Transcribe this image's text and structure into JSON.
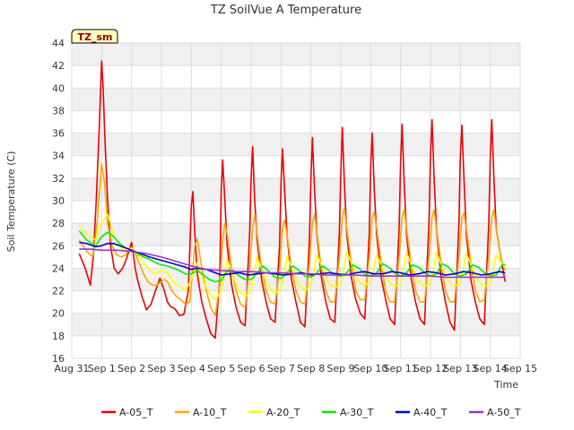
{
  "chart_data": {
    "type": "line",
    "title": "TZ SoilVue A Temperature",
    "xlabel": "Time",
    "ylabel": "Soil Temperature (C)",
    "ylim": [
      16,
      44
    ],
    "yticks": [
      16,
      18,
      20,
      22,
      24,
      26,
      28,
      30,
      32,
      34,
      36,
      38,
      40,
      42,
      44
    ],
    "xlim": [
      0,
      15
    ],
    "xtick_labels": [
      "Aug 31",
      "Sep 1",
      "Sep 2",
      "Sep 3",
      "Sep 4",
      "Sep 5",
      "Sep 6",
      "Sep 7",
      "Sep 8",
      "Sep 9",
      "Sep 10",
      "Sep 11",
      "Sep 12",
      "Sep 13",
      "Sep 14",
      "Sep 15"
    ],
    "badge": "TZ_sm",
    "legend_position": "bottom",
    "colors": {
      "A-05_T": "#ee0000",
      "A-10_T": "#ffa500",
      "A-20_T": "#ffff00",
      "A-30_T": "#00ee00",
      "A-40_T": "#0000cc",
      "A-50_T": "#9933cc"
    },
    "series": [
      {
        "name": "A-05_T",
        "x": [
          0.25,
          0.45,
          0.62,
          0.72,
          0.82,
          0.92,
          1.0,
          1.05,
          1.1,
          1.2,
          1.3,
          1.42,
          1.55,
          1.7,
          1.85,
          2.0,
          2.05,
          2.12,
          2.2,
          2.35,
          2.5,
          2.65,
          2.8,
          2.95,
          3.1,
          3.2,
          3.3,
          3.45,
          3.6,
          3.75,
          3.9,
          4.0,
          4.05,
          4.12,
          4.2,
          4.35,
          4.5,
          4.65,
          4.8,
          4.95,
          5.0,
          5.05,
          5.12,
          5.2,
          5.35,
          5.5,
          5.65,
          5.8,
          5.95,
          6.0,
          6.05,
          6.12,
          6.2,
          6.35,
          6.5,
          6.65,
          6.8,
          6.95,
          7.0,
          7.05,
          7.12,
          7.2,
          7.35,
          7.5,
          7.65,
          7.8,
          7.95,
          8.0,
          8.05,
          8.12,
          8.2,
          8.35,
          8.5,
          8.65,
          8.8,
          8.95,
          9.0,
          9.05,
          9.12,
          9.2,
          9.35,
          9.5,
          9.65,
          9.8,
          9.95,
          10.0,
          10.05,
          10.12,
          10.2,
          10.35,
          10.5,
          10.65,
          10.8,
          10.95,
          11.0,
          11.05,
          11.12,
          11.2,
          11.35,
          11.5,
          11.65,
          11.8,
          11.95,
          12.0,
          12.05,
          12.12,
          12.2,
          12.35,
          12.5,
          12.65,
          12.8,
          12.95,
          13.0,
          13.05,
          13.12,
          13.2,
          13.35,
          13.5,
          13.65,
          13.8,
          13.95,
          14.0,
          14.05,
          14.12,
          14.2,
          14.35,
          14.5
        ],
        "y": [
          25.3,
          24.0,
          22.5,
          25.0,
          30.0,
          36.5,
          42.4,
          40.0,
          36.0,
          30.0,
          26.0,
          24.0,
          23.5,
          24.0,
          25.0,
          26.3,
          25.5,
          24.0,
          23.0,
          21.5,
          20.3,
          20.8,
          22.0,
          23.1,
          22.0,
          21.0,
          20.6,
          20.4,
          19.8,
          19.9,
          22.0,
          29.5,
          30.8,
          27.0,
          23.5,
          21.0,
          19.5,
          18.2,
          17.8,
          23.0,
          31.0,
          33.6,
          30.0,
          26.0,
          22.5,
          20.5,
          19.2,
          18.9,
          27.0,
          32.0,
          34.8,
          30.0,
          26.5,
          23.0,
          21.0,
          19.5,
          19.2,
          26.0,
          31.5,
          34.6,
          31.0,
          27.0,
          23.0,
          21.0,
          19.2,
          18.8,
          26.5,
          32.0,
          35.6,
          31.0,
          27.0,
          23.2,
          21.0,
          19.5,
          19.2,
          27.0,
          32.5,
          36.5,
          31.5,
          27.0,
          23.2,
          21.2,
          20.0,
          19.5,
          27.0,
          33.0,
          36.0,
          31.0,
          27.0,
          23.2,
          21.2,
          19.5,
          19.0,
          27.5,
          33.5,
          36.8,
          31.5,
          27.0,
          23.2,
          21.0,
          19.5,
          19.0,
          28.0,
          34.0,
          37.2,
          32.0,
          27.5,
          23.2,
          21.0,
          19.2,
          18.5,
          28.0,
          34.0,
          36.7,
          32.0,
          27.0,
          23.0,
          21.0,
          19.5,
          19.0,
          28.0,
          34.0,
          37.2,
          32.0,
          27.5,
          25.0,
          22.8
        ]
      },
      {
        "name": "A-10_T",
        "x": [
          0.25,
          0.5,
          0.7,
          0.85,
          1.0,
          1.1,
          1.2,
          1.35,
          1.5,
          1.65,
          1.8,
          1.95,
          2.1,
          2.25,
          2.4,
          2.55,
          2.7,
          2.85,
          3.0,
          3.1,
          3.2,
          3.35,
          3.5,
          3.65,
          3.8,
          3.95,
          4.05,
          4.12,
          4.2,
          4.35,
          4.5,
          4.65,
          4.8,
          4.95,
          5.05,
          5.12,
          5.2,
          5.35,
          5.5,
          5.65,
          5.8,
          5.95,
          6.05,
          6.12,
          6.2,
          6.35,
          6.5,
          6.65,
          6.8,
          6.95,
          7.05,
          7.12,
          7.2,
          7.35,
          7.5,
          7.65,
          7.8,
          7.95,
          8.05,
          8.12,
          8.2,
          8.35,
          8.5,
          8.65,
          8.8,
          8.95,
          9.05,
          9.12,
          9.2,
          9.35,
          9.5,
          9.65,
          9.8,
          9.95,
          10.05,
          10.12,
          10.2,
          10.35,
          10.5,
          10.65,
          10.8,
          10.95,
          11.05,
          11.12,
          11.2,
          11.35,
          11.5,
          11.65,
          11.8,
          11.95,
          12.05,
          12.12,
          12.2,
          12.35,
          12.5,
          12.65,
          12.8,
          12.95,
          13.05,
          13.12,
          13.2,
          13.35,
          13.5,
          13.65,
          13.8,
          13.95,
          14.05,
          14.12,
          14.2,
          14.35,
          14.5
        ],
        "y": [
          26.5,
          25.5,
          25.0,
          28.0,
          33.3,
          31.5,
          28.0,
          26.0,
          25.2,
          25.0,
          25.2,
          25.8,
          25.5,
          24.5,
          23.5,
          22.8,
          22.5,
          22.5,
          22.8,
          23.0,
          22.8,
          22.0,
          21.5,
          21.2,
          20.8,
          21.0,
          24.0,
          26.0,
          26.6,
          24.0,
          22.0,
          20.5,
          19.8,
          22.5,
          26.5,
          28.0,
          27.0,
          24.0,
          22.0,
          20.8,
          20.5,
          24.0,
          27.5,
          28.8,
          27.0,
          24.0,
          22.0,
          21.0,
          20.8,
          24.0,
          27.5,
          28.3,
          27.0,
          24.0,
          22.0,
          21.0,
          20.8,
          24.5,
          28.0,
          28.8,
          27.2,
          24.0,
          22.0,
          21.0,
          21.0,
          25.0,
          28.5,
          29.3,
          27.5,
          24.5,
          22.0,
          21.2,
          21.2,
          25.0,
          28.5,
          29.0,
          27.5,
          24.5,
          22.0,
          21.0,
          21.0,
          25.0,
          28.5,
          29.2,
          27.5,
          24.5,
          22.0,
          21.0,
          21.0,
          25.0,
          28.5,
          29.2,
          27.5,
          24.5,
          22.0,
          21.0,
          21.0,
          25.0,
          28.5,
          28.9,
          27.5,
          24.5,
          22.0,
          21.0,
          21.2,
          25.0,
          28.5,
          29.2,
          27.5,
          25.0,
          23.8
        ]
      },
      {
        "name": "A-20_T",
        "x": [
          0.25,
          0.5,
          0.8,
          1.0,
          1.2,
          1.4,
          1.6,
          1.8,
          2.0,
          2.2,
          2.4,
          2.6,
          2.8,
          3.0,
          3.2,
          3.4,
          3.6,
          3.8,
          4.0,
          4.2,
          4.4,
          4.6,
          4.8,
          5.0,
          5.2,
          5.4,
          5.6,
          5.8,
          6.0,
          6.2,
          6.4,
          6.6,
          6.8,
          7.0,
          7.2,
          7.4,
          7.6,
          7.8,
          8.0,
          8.2,
          8.4,
          8.6,
          8.8,
          9.0,
          9.2,
          9.4,
          9.6,
          9.8,
          10.0,
          10.2,
          10.4,
          10.6,
          10.8,
          11.0,
          11.2,
          11.4,
          11.6,
          11.8,
          12.0,
          12.2,
          12.4,
          12.6,
          12.8,
          13.0,
          13.2,
          13.4,
          13.6,
          13.8,
          14.0,
          14.2,
          14.4,
          14.5
        ],
        "y": [
          27.8,
          27.0,
          26.5,
          28.0,
          28.8,
          27.0,
          26.0,
          25.5,
          25.8,
          25.2,
          24.5,
          23.8,
          23.5,
          23.8,
          23.6,
          22.8,
          22.4,
          22.0,
          23.0,
          24.5,
          22.8,
          21.8,
          21.2,
          22.0,
          24.8,
          23.2,
          22.0,
          21.5,
          22.0,
          25.0,
          23.5,
          22.2,
          21.8,
          22.2,
          25.0,
          23.8,
          22.5,
          22.0,
          22.5,
          25.2,
          24.0,
          22.6,
          22.3,
          22.6,
          25.4,
          24.2,
          22.8,
          22.5,
          22.8,
          25.2,
          24.0,
          22.8,
          22.4,
          22.6,
          25.4,
          24.0,
          22.8,
          22.4,
          22.6,
          25.4,
          24.0,
          22.8,
          22.4,
          22.6,
          25.3,
          24.0,
          22.8,
          22.4,
          22.6,
          25.2,
          24.4,
          24.0
        ]
      },
      {
        "name": "A-30_T",
        "x": [
          0.25,
          0.5,
          0.8,
          1.0,
          1.2,
          1.4,
          1.6,
          1.8,
          2.0,
          2.2,
          2.4,
          2.6,
          2.8,
          3.0,
          3.2,
          3.4,
          3.6,
          3.8,
          4.0,
          4.2,
          4.4,
          4.6,
          4.8,
          5.0,
          5.2,
          5.4,
          5.6,
          5.8,
          6.0,
          6.2,
          6.4,
          6.6,
          6.8,
          7.0,
          7.2,
          7.4,
          7.6,
          7.8,
          8.0,
          8.2,
          8.4,
          8.6,
          8.8,
          9.0,
          9.2,
          9.4,
          9.6,
          9.8,
          10.0,
          10.2,
          10.4,
          10.6,
          10.8,
          11.0,
          11.2,
          11.4,
          11.6,
          11.8,
          12.0,
          12.2,
          12.4,
          12.6,
          12.8,
          13.0,
          13.2,
          13.4,
          13.6,
          13.8,
          14.0,
          14.2,
          14.4,
          14.5
        ],
        "y": [
          27.3,
          26.5,
          26.0,
          26.8,
          27.2,
          26.8,
          26.2,
          25.8,
          25.6,
          25.3,
          25.0,
          24.8,
          24.5,
          24.3,
          24.2,
          24.0,
          23.8,
          23.5,
          23.5,
          23.8,
          23.4,
          23.0,
          22.8,
          22.9,
          23.8,
          23.8,
          23.3,
          23.0,
          23.0,
          23.6,
          24.2,
          23.7,
          23.2,
          23.1,
          23.6,
          24.2,
          23.8,
          23.3,
          23.2,
          23.6,
          24.2,
          23.8,
          23.4,
          23.3,
          23.6,
          24.3,
          24.0,
          23.5,
          23.3,
          23.6,
          24.4,
          24.1,
          23.6,
          23.3,
          23.6,
          24.3,
          24.1,
          23.6,
          23.3,
          23.5,
          24.4,
          24.1,
          23.5,
          23.3,
          23.5,
          24.3,
          24.1,
          23.6,
          23.3,
          23.4,
          24.3,
          24.3
        ]
      },
      {
        "name": "A-40_T",
        "x": [
          0.25,
          0.5,
          0.8,
          1.0,
          1.2,
          1.4,
          1.6,
          1.8,
          2.0,
          2.3,
          2.6,
          3.0,
          3.4,
          3.8,
          4.0,
          4.2,
          4.5,
          4.8,
          5.0,
          5.3,
          5.6,
          5.9,
          6.2,
          6.5,
          6.8,
          7.1,
          7.4,
          7.7,
          8.0,
          8.3,
          8.6,
          8.9,
          9.2,
          9.5,
          9.8,
          10.1,
          10.4,
          10.7,
          11.0,
          11.3,
          11.6,
          11.9,
          12.2,
          12.5,
          12.8,
          13.1,
          13.4,
          13.7,
          14.0,
          14.3,
          14.5
        ],
        "y": [
          26.3,
          26.2,
          25.9,
          26.0,
          26.2,
          26.2,
          26.0,
          25.8,
          25.6,
          25.3,
          25.0,
          24.7,
          24.4,
          24.1,
          23.9,
          24.0,
          23.9,
          23.6,
          23.4,
          23.5,
          23.6,
          23.4,
          23.5,
          23.6,
          23.5,
          23.4,
          23.5,
          23.6,
          23.4,
          23.5,
          23.6,
          23.5,
          23.4,
          23.6,
          23.7,
          23.5,
          23.5,
          23.7,
          23.6,
          23.4,
          23.5,
          23.7,
          23.6,
          23.4,
          23.5,
          23.7,
          23.6,
          23.4,
          23.5,
          23.7,
          23.6
        ]
      },
      {
        "name": "A-50_T",
        "x": [
          0.25,
          0.6,
          1.0,
          1.5,
          2.0,
          2.5,
          3.0,
          3.5,
          4.0,
          4.5,
          5.0,
          5.5,
          6.0,
          6.5,
          7.0,
          7.5,
          8.0,
          8.5,
          9.0,
          9.5,
          10.0,
          10.5,
          11.0,
          11.5,
          12.0,
          12.5,
          13.0,
          13.5,
          14.0,
          14.5
        ],
        "y": [
          25.7,
          25.7,
          25.6,
          25.6,
          25.5,
          25.3,
          25.0,
          24.6,
          24.2,
          23.9,
          23.8,
          23.7,
          23.7,
          23.6,
          23.6,
          23.5,
          23.5,
          23.4,
          23.4,
          23.4,
          23.3,
          23.3,
          23.3,
          23.3,
          23.3,
          23.2,
          23.2,
          23.2,
          23.2,
          23.2
        ]
      }
    ]
  }
}
